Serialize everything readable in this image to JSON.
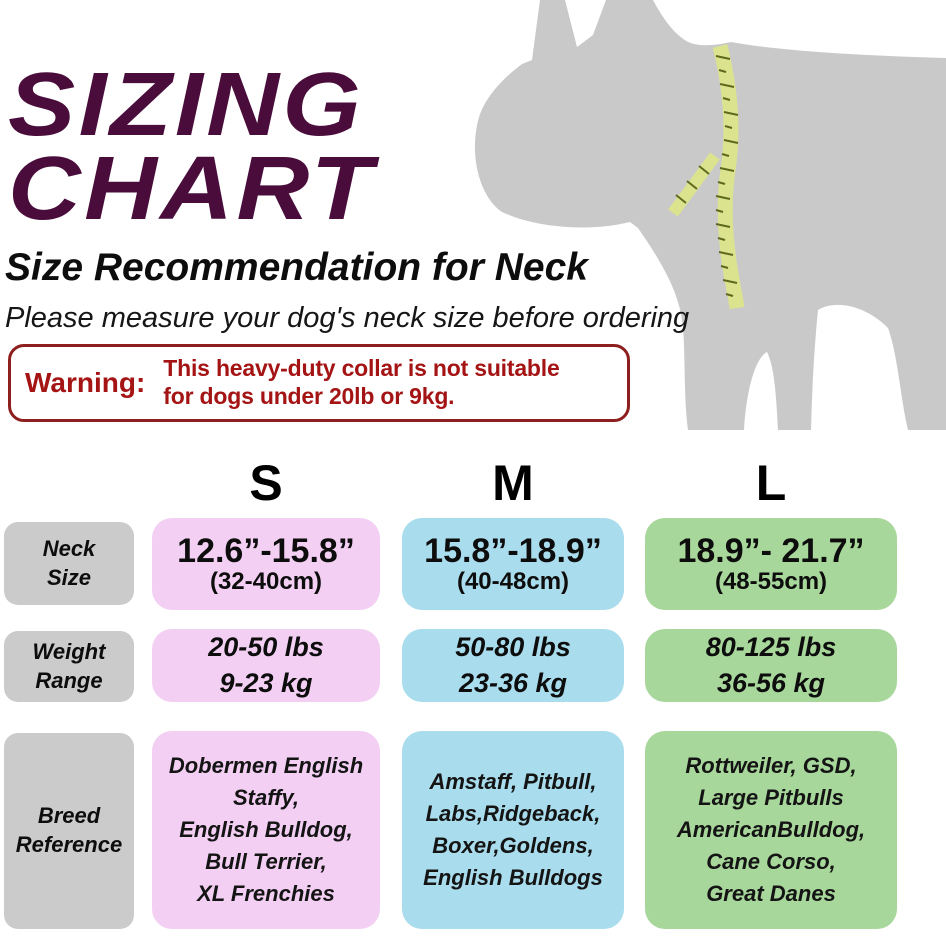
{
  "colors": {
    "title": "#4a0d3b",
    "warning_text": "#a51414",
    "warning_border": "#8e1f1f",
    "cell_s": "#f3d0f3",
    "cell_m": "#a9dcec",
    "cell_l": "#a8d79b",
    "label_bg": "#cbcbcb",
    "dog": "#c9c9c9",
    "tape": "#dbe38f",
    "tape_tick": "#5e691e"
  },
  "header": {
    "title_lines": [
      "SIZING",
      "CHART"
    ],
    "subtitle": "Size Recommendation for Neck",
    "note": "Please measure your dog's neck size before ordering"
  },
  "warning": {
    "label": "Warning:",
    "message_lines": [
      "This heavy-duty collar is not suitable",
      "for dogs under 20lb or 9kg."
    ]
  },
  "dog_image": {
    "description": "gray dog silhouette with measuring tape around neck"
  },
  "size_chart": {
    "columns": [
      "S",
      "M",
      "L"
    ],
    "rows": [
      {
        "label_lines": [
          "Neck",
          "Size"
        ],
        "cells": [
          {
            "main": "12.6”-15.8”",
            "sub": "(32-40cm)"
          },
          {
            "main": "15.8”-18.9”",
            "sub": "(40-48cm)"
          },
          {
            "main": "18.9”- 21.7”",
            "sub": "(48-55cm)"
          }
        ]
      },
      {
        "label_lines": [
          "Weight",
          "Range"
        ],
        "cells": [
          {
            "lines": [
              "20-50 lbs",
              "9-23 kg"
            ]
          },
          {
            "lines": [
              "50-80 lbs",
              "23-36 kg"
            ]
          },
          {
            "lines": [
              "80-125 lbs",
              "36-56 kg"
            ]
          }
        ]
      },
      {
        "label_lines": [
          "Breed",
          "Reference"
        ],
        "cells": [
          {
            "lines": [
              "Dobermen English",
              "Staffy,",
              "English Bulldog,",
              "Bull Terrier,",
              "XL Frenchies"
            ]
          },
          {
            "lines": [
              "Amstaff, Pitbull,",
              "Labs,Ridgeback,",
              "Boxer,Goldens,",
              "English Bulldogs"
            ]
          },
          {
            "lines": [
              "Rottweiler, GSD,",
              "Large Pitbulls",
              "AmericanBulldog,",
              "Cane Corso,",
              "Great Danes"
            ]
          }
        ]
      }
    ]
  }
}
